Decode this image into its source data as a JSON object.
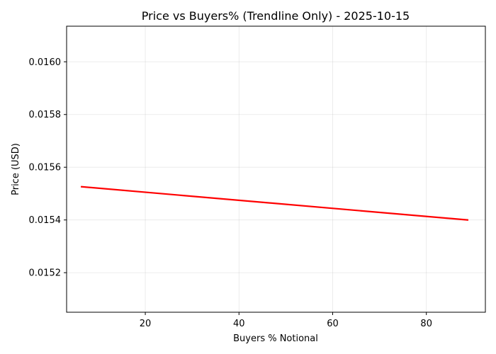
{
  "chart_data": {
    "type": "line",
    "title": "Price vs Buyers% (Trendline Only) - 2025-10-15",
    "xlabel": "Buyers % Notional",
    "ylabel": "Price (USD)",
    "xlim": [
      3.2,
      92.6
    ],
    "ylim": [
      0.01505,
      0.016135
    ],
    "xticks": [
      20,
      40,
      60,
      80
    ],
    "xtick_labels": [
      "20",
      "40",
      "60",
      "80"
    ],
    "yticks": [
      0.0152,
      0.0154,
      0.0156,
      0.0158,
      0.016
    ],
    "ytick_labels": [
      "0.0152",
      "0.0154",
      "0.0156",
      "0.0158",
      "0.0160"
    ],
    "grid": true,
    "series": [
      {
        "color": "#ff0000",
        "x": [
          6.4,
          88.8
        ],
        "y": [
          0.015526,
          0.0154
        ]
      }
    ]
  }
}
